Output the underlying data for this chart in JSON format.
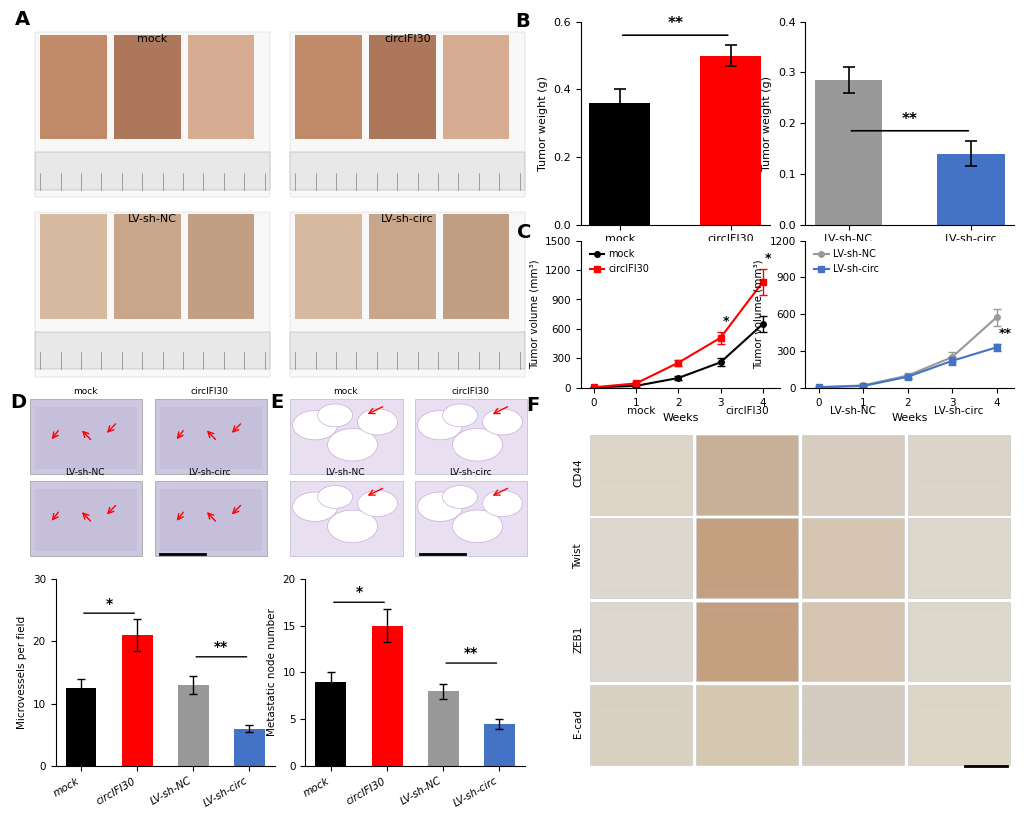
{
  "panel_B_left": {
    "categories": [
      "mock",
      "circIFI30"
    ],
    "values": [
      0.36,
      0.5
    ],
    "errors": [
      0.04,
      0.03
    ],
    "colors": [
      "#000000",
      "#FF0000"
    ],
    "ylabel": "Tumor weight (g)",
    "ylim": [
      0,
      0.6
    ],
    "yticks": [
      0.0,
      0.2,
      0.4,
      0.6
    ],
    "sig": "**"
  },
  "panel_B_right": {
    "categories": [
      "LV-sh-NC",
      "LV-sh-circ"
    ],
    "values": [
      0.285,
      0.14
    ],
    "errors": [
      0.025,
      0.025
    ],
    "colors": [
      "#999999",
      "#4472C4"
    ],
    "ylabel": "Tumor weight (g)",
    "ylim": [
      0,
      0.4
    ],
    "yticks": [
      0.0,
      0.1,
      0.2,
      0.3,
      0.4
    ],
    "sig": "**"
  },
  "panel_C_left": {
    "weeks": [
      0,
      1,
      2,
      3,
      4
    ],
    "mock": [
      5,
      20,
      100,
      260,
      650
    ],
    "mock_err": [
      3,
      8,
      20,
      40,
      80
    ],
    "circIFI30": [
      5,
      45,
      255,
      510,
      1080
    ],
    "circIFI30_err": [
      3,
      10,
      30,
      60,
      130
    ],
    "mock_color": "#000000",
    "circ_color": "#FF0000",
    "ylabel": "Tumor volume (mm³)",
    "ylim": [
      0,
      1500
    ],
    "yticks": [
      0,
      300,
      600,
      900,
      1200,
      1500
    ],
    "xlabel": "Weeks",
    "sig_weeks": [
      3,
      4
    ],
    "sig_labels": [
      "*",
      "*"
    ]
  },
  "panel_C_right": {
    "weeks": [
      0,
      1,
      2,
      3,
      4
    ],
    "LV_sh_NC": [
      5,
      20,
      100,
      250,
      575
    ],
    "LV_sh_NC_err": [
      3,
      8,
      20,
      40,
      70
    ],
    "LV_sh_circ": [
      5,
      15,
      90,
      220,
      330
    ],
    "LV_sh_circ_err": [
      3,
      5,
      15,
      35,
      30
    ],
    "NC_color": "#999999",
    "circ_color": "#4472C4",
    "ylabel": "Tumor volume (mm³)",
    "ylim": [
      0,
      1200
    ],
    "yticks": [
      0,
      300,
      600,
      900,
      1200
    ],
    "xlabel": "Weeks",
    "sig_weeks": [
      4
    ],
    "sig_labels": [
      "**"
    ]
  },
  "panel_D_microvessels": {
    "categories": [
      "mock",
      "circIFI30",
      "LV-sh-NC",
      "LV-sh-circ"
    ],
    "values": [
      12.5,
      21.0,
      13.0,
      6.0
    ],
    "errors": [
      1.5,
      2.5,
      1.5,
      0.5
    ],
    "colors": [
      "#000000",
      "#FF0000",
      "#999999",
      "#4472C4"
    ],
    "ylabel": "Microvessels per field",
    "ylim": [
      0,
      30
    ],
    "yticks": [
      0,
      10,
      20,
      30
    ]
  },
  "panel_E_metastatic": {
    "categories": [
      "mock",
      "circIFI30",
      "LV-sh-NC",
      "LV-sh-circ"
    ],
    "values": [
      9.0,
      15.0,
      8.0,
      4.5
    ],
    "errors": [
      1.0,
      1.8,
      0.8,
      0.5
    ],
    "colors": [
      "#000000",
      "#FF0000",
      "#999999",
      "#4472C4"
    ],
    "ylabel": "Metastatic node number",
    "ylim": [
      0,
      20
    ],
    "yticks": [
      0,
      5,
      10,
      15,
      20
    ]
  },
  "D_img_color": "#cdc8e0",
  "D_img_color2": "#bfb8d8",
  "E_img_color": "#e8e0f0",
  "E_img_color2": "#dcd4ec",
  "A_tumor_color": "#c8907a",
  "A_ruler_color": "#d0d0d0",
  "F_ihc_colors": [
    [
      "#ddd5c8",
      "#c8b098",
      "#d8ccc0",
      "#dcd4c8"
    ],
    [
      "#dcd8d0",
      "#c4a080",
      "#d4c4b0",
      "#dcd8cc"
    ],
    [
      "#dcd8d0",
      "#c4a080",
      "#d4c4b0",
      "#dcd8cc"
    ],
    [
      "#d8d0c0",
      "#d4c8b0",
      "#d4ccc0",
      "#ddd5c5"
    ]
  ],
  "F_col_labels": [
    "mock",
    "circIFI30",
    "LV-sh-NC",
    "LV-sh-circ"
  ],
  "F_row_labels": [
    "CD44",
    "Twist",
    "ZEB1",
    "E-cad"
  ]
}
